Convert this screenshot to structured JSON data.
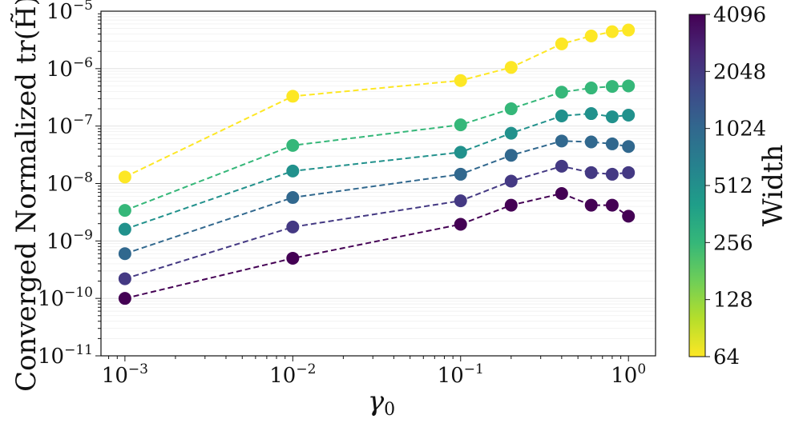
{
  "chart_data": {
    "type": "line",
    "xscale": "log",
    "yscale": "log",
    "xlabel": "γ",
    "xlabel_sub": "0",
    "ylabel": "Converged Normalized tr(H̃)",
    "xlim": [
      0.00072,
      1.45
    ],
    "ylim": [
      1e-11,
      1e-05
    ],
    "grid": true,
    "x": [
      0.001,
      0.01,
      0.1,
      0.2,
      0.4,
      0.6,
      0.8,
      1.0
    ],
    "x_ticks": [
      {
        "value": 0.001,
        "base": "10",
        "exp": "−3"
      },
      {
        "value": 0.01,
        "base": "10",
        "exp": "−2"
      },
      {
        "value": 0.1,
        "base": "10",
        "exp": "−1"
      },
      {
        "value": 1,
        "base": "10",
        "exp": "0"
      }
    ],
    "y_ticks": [
      {
        "value": 1e-11,
        "base": "10",
        "exp": "−11"
      },
      {
        "value": 1e-10,
        "base": "10",
        "exp": "−10"
      },
      {
        "value": 1e-09,
        "base": "10",
        "exp": "−9"
      },
      {
        "value": 1e-08,
        "base": "10",
        "exp": "−8"
      },
      {
        "value": 1e-07,
        "base": "10",
        "exp": "−7"
      },
      {
        "value": 1e-06,
        "base": "10",
        "exp": "−6"
      },
      {
        "value": 1e-05,
        "base": "10",
        "exp": "−5"
      }
    ],
    "series": [
      {
        "width": 64,
        "color": "#fde725",
        "values": [
          1.3e-08,
          3.3e-07,
          6.2e-07,
          1.05e-06,
          2.7e-06,
          3.7e-06,
          4.4e-06,
          4.7e-06
        ]
      },
      {
        "width": 256,
        "color": "#35b779",
        "values": [
          3.4e-09,
          4.6e-08,
          1.05e-07,
          2e-07,
          3.9e-07,
          4.6e-07,
          4.9e-07,
          5e-07
        ]
      },
      {
        "width": 512,
        "color": "#21918c",
        "values": [
          1.6e-09,
          1.65e-08,
          3.5e-08,
          7.5e-08,
          1.5e-07,
          1.65e-07,
          1.45e-07,
          1.55e-07
        ]
      },
      {
        "width": 1024,
        "color": "#31688e",
        "values": [
          6e-10,
          5.7e-09,
          1.45e-08,
          3.1e-08,
          5.5e-08,
          5.3e-08,
          4.9e-08,
          4.4e-08
        ]
      },
      {
        "width": 2048,
        "color": "#443983",
        "values": [
          2.2e-10,
          1.75e-09,
          5e-09,
          1.1e-08,
          2e-08,
          1.55e-08,
          1.45e-08,
          1.55e-08
        ]
      },
      {
        "width": 4096,
        "color": "#440154",
        "values": [
          1e-10,
          5e-10,
          1.95e-09,
          4.2e-09,
          6.7e-09,
          4.2e-09,
          4.2e-09,
          2.7e-09
        ]
      }
    ],
    "colorbar": {
      "label": "Width",
      "ticks": [
        "64",
        "128",
        "256",
        "512",
        "1024",
        "2048",
        "4096"
      ],
      "colormap": "viridis",
      "colors": [
        "#fde725",
        "#b5de2b",
        "#6ece58",
        "#35b779",
        "#1f9e89",
        "#26828e",
        "#31688e",
        "#3e4989",
        "#482878",
        "#440154"
      ]
    }
  }
}
